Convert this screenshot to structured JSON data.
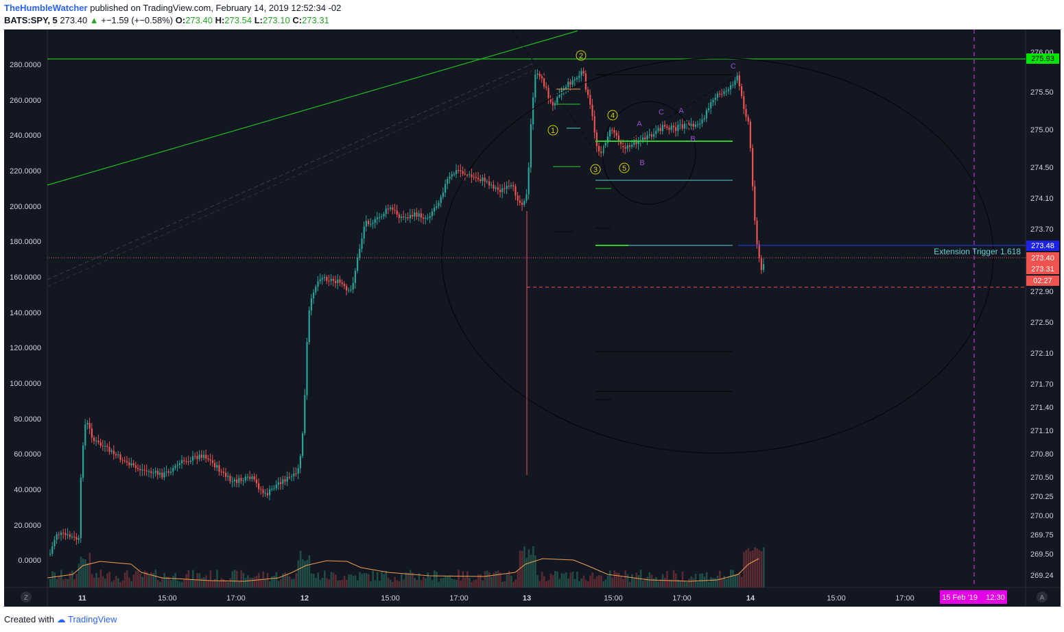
{
  "header": {
    "author": "TheHumbleWatcher",
    "published_text": "published on TradingView.com, February 14, 2019 12:52:34 -02",
    "symbol": "BATS:SPY, 5",
    "last": "273.40",
    "change": "+−1.59 (+−0.58%)",
    "o_label": "O:",
    "o": "273.40",
    "h_label": "H:",
    "h": "273.54",
    "l_label": "L:",
    "l": "273.10",
    "c_label": "C:",
    "c": "273.31"
  },
  "left_axis": {
    "labels": [
      "280.0000",
      "260.0000",
      "240.0000",
      "220.0000",
      "200.0000",
      "180.0000",
      "160.0000",
      "140.0000",
      "120.0000",
      "100.0000",
      "80.0000",
      "60.0000",
      "40.0000",
      "20.0000",
      "0.0000"
    ]
  },
  "right_axis": {
    "labels": [
      "276.00",
      "275.50",
      "275.00",
      "274.50",
      "274.10",
      "273.70",
      "272.90",
      "272.50",
      "272.10",
      "271.70",
      "271.40",
      "271.10",
      "270.80",
      "270.50",
      "270.25",
      "270.00",
      "269.75",
      "269.50",
      "269.24"
    ],
    "badges": [
      {
        "text": "275.93",
        "color": "#00e600",
        "text_color": "#000000"
      },
      {
        "text": "273.48",
        "color": "#1e22e6",
        "text_color": "#ffffff"
      },
      {
        "text": "273.40",
        "color": "#ef5350",
        "text_color": "#ffffff"
      },
      {
        "text": "273.31",
        "color": "#ef5350",
        "text_color": "#ffffff"
      },
      {
        "text": "02:27",
        "color": "#ef5350",
        "text_color": "#ffffff"
      }
    ]
  },
  "time_axis": {
    "labels": [
      "11",
      "15:00",
      "17:00",
      "12",
      "15:00",
      "17:00",
      "13",
      "15:00",
      "17:00",
      "14",
      "15:00",
      "17:00"
    ],
    "highlight": "15 Feb '19    12:30"
  },
  "annotations": {
    "extension": "Extension Trigger 1.618",
    "waves": [
      "1",
      "2",
      "3",
      "4",
      "5"
    ],
    "abc": [
      "A",
      "B",
      "C",
      "C",
      "A",
      "B"
    ]
  },
  "controls": {
    "zoom": "Z",
    "auto": "A"
  },
  "colors": {
    "bg": "#131722",
    "up": "#26a69a",
    "down": "#ef5350",
    "green": "#00d000",
    "cyan": "#5fd3d3",
    "magenta": "#e040fb",
    "yellow": "#d4d400",
    "purple": "#9c4fd6"
  },
  "footer": {
    "created": "Created with",
    "brand": "TradingView"
  }
}
